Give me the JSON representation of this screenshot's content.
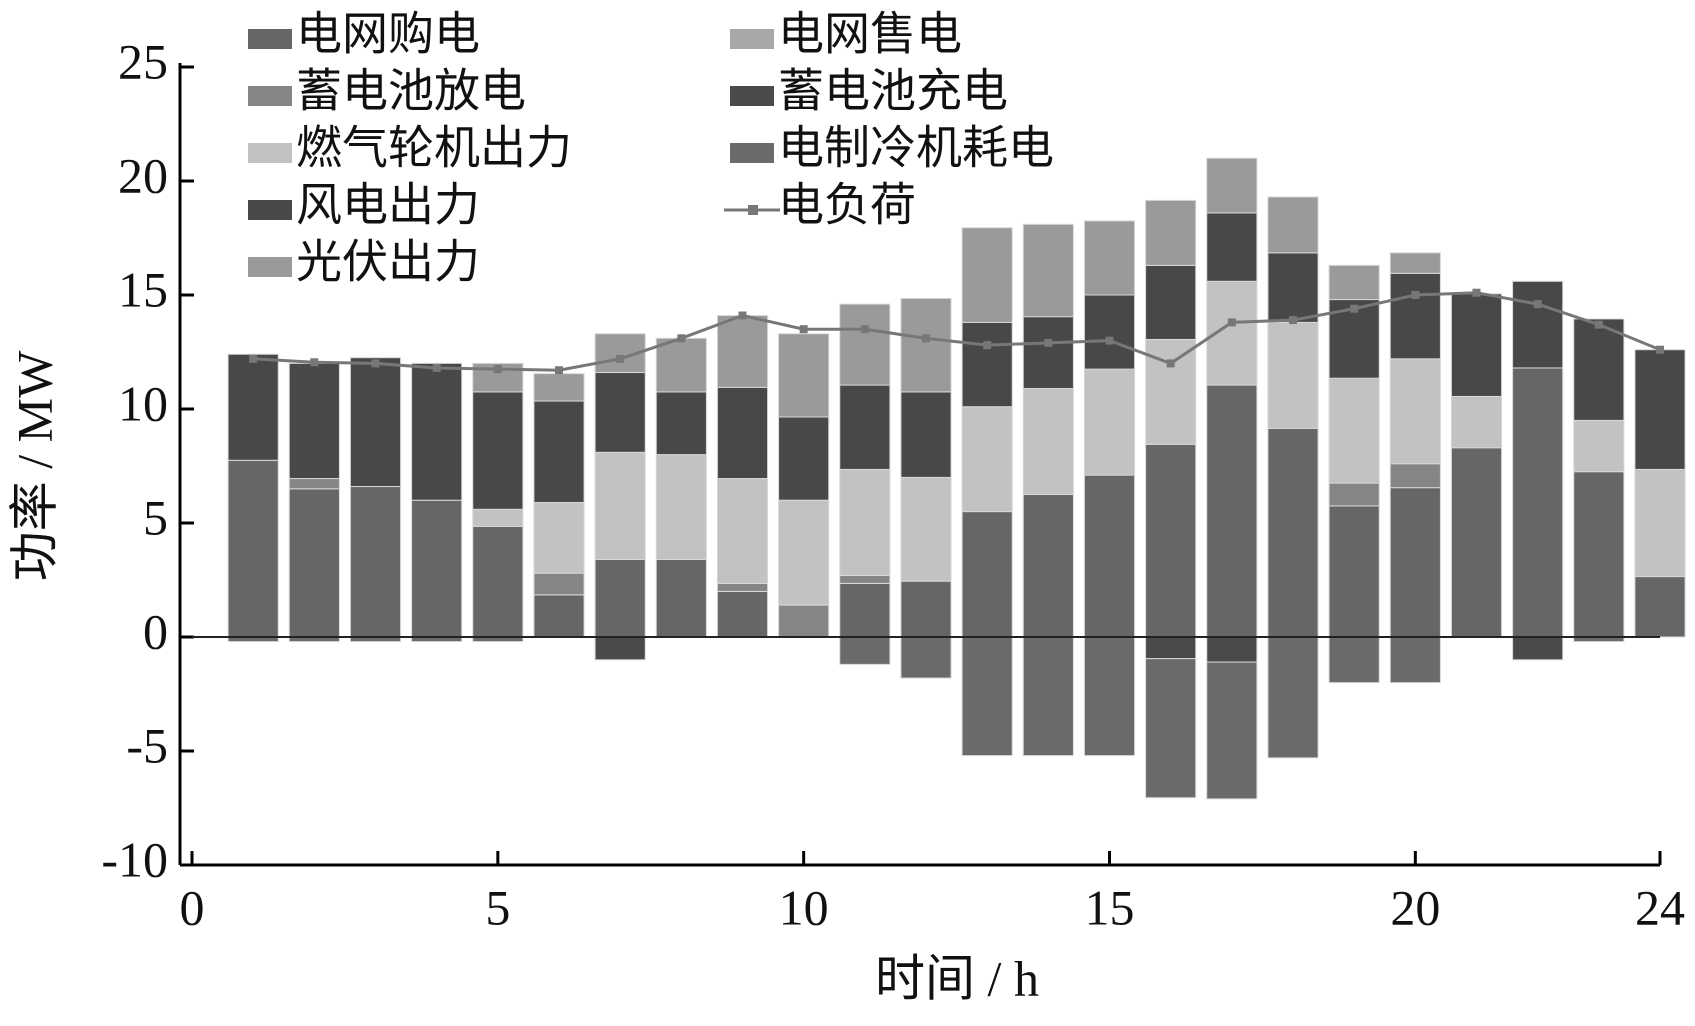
{
  "chart_data": {
    "type": "bar",
    "stacked": true,
    "xlabel": "时间 / h",
    "ylabel": "功率 / MW",
    "x": [
      1,
      2,
      3,
      4,
      5,
      6,
      7,
      8,
      9,
      10,
      11,
      12,
      13,
      14,
      15,
      16,
      17,
      18,
      19,
      20,
      21,
      22,
      23,
      24
    ],
    "xlim": [
      0,
      24
    ],
    "xticks": [
      0,
      5,
      10,
      15,
      20,
      24
    ],
    "ylim": [
      -10,
      25
    ],
    "yticks": [
      -10,
      -5,
      0,
      5,
      10,
      15,
      20,
      25
    ],
    "series": [
      {
        "name": "电网购电",
        "color": "#666666",
        "values": [
          7.75,
          6.5,
          6.6,
          6.0,
          4.85,
          1.85,
          3.4,
          3.4,
          2.0,
          0,
          2.35,
          2.45,
          5.5,
          6.25,
          7.1,
          8.45,
          11.05,
          9.15,
          5.75,
          6.55,
          8.3,
          11.8,
          7.25,
          2.65
        ]
      },
      {
        "name": "电网售电",
        "color": "#a8a8a8",
        "values": [
          0,
          0,
          0,
          0,
          0,
          0,
          0,
          0,
          0,
          0,
          0,
          0,
          0,
          0,
          0,
          0,
          0,
          0,
          0,
          0,
          0,
          0,
          0,
          0
        ]
      },
      {
        "name": "蓄电池放电",
        "color": "#858585",
        "values": [
          0,
          0.45,
          0,
          0,
          0,
          0.95,
          0,
          0,
          0.35,
          1.4,
          0.35,
          0,
          0,
          0,
          0,
          0,
          0,
          0,
          1.0,
          1.05,
          0,
          0,
          0,
          0
        ]
      },
      {
        "name": "蓄电池充电",
        "color": "#4a4a4a",
        "values": [
          0,
          0,
          0,
          0,
          0,
          0,
          -1.0,
          0,
          0,
          0,
          0,
          0,
          0,
          0,
          0,
          -0.95,
          -1.1,
          0,
          0,
          0,
          0,
          -1.0,
          0,
          0
        ]
      },
      {
        "name": "燃气轮机出力",
        "color": "#c2c2c2",
        "values": [
          0,
          0,
          0,
          0,
          0.75,
          3.1,
          4.7,
          4.6,
          4.6,
          4.6,
          4.65,
          4.55,
          4.6,
          4.65,
          4.65,
          4.6,
          4.55,
          4.65,
          4.6,
          4.6,
          2.25,
          0,
          2.25,
          4.7
        ]
      },
      {
        "name": "电制冷机耗电",
        "color": "#6a6a6a",
        "values": [
          -0.2,
          -0.2,
          -0.2,
          -0.2,
          -0.2,
          0,
          0,
          0,
          0,
          0,
          -1.2,
          -1.8,
          -5.2,
          -5.2,
          -5.2,
          -6.1,
          -6.0,
          -5.3,
          -2.0,
          -2.0,
          0,
          0,
          -0.2,
          0
        ]
      },
      {
        "name": "风电出力",
        "color": "#484848",
        "values": [
          4.65,
          5.05,
          5.65,
          6.0,
          5.15,
          4.45,
          3.5,
          2.75,
          4.0,
          3.65,
          3.7,
          3.75,
          3.7,
          3.15,
          3.25,
          3.25,
          3.0,
          3.05,
          3.45,
          3.75,
          4.5,
          3.8,
          4.45,
          5.25
        ]
      },
      {
        "name": "电负荷",
        "type": "line",
        "color": "#777777",
        "values": [
          12.2,
          12.05,
          12.0,
          11.8,
          11.75,
          11.7,
          12.2,
          13.1,
          14.1,
          13.5,
          13.5,
          13.1,
          12.8,
          12.9,
          13.0,
          12.0,
          13.8,
          13.9,
          14.4,
          15.0,
          15.1,
          14.6,
          13.7,
          12.6
        ]
      },
      {
        "name": "光伏出力",
        "color": "#9a9a9a",
        "values": [
          0,
          0,
          0,
          0,
          1.25,
          1.2,
          1.7,
          2.35,
          3.15,
          3.65,
          3.55,
          4.1,
          4.15,
          4.05,
          3.25,
          2.85,
          2.4,
          2.45,
          1.5,
          0.9,
          0,
          0,
          0,
          0
        ]
      }
    ]
  }
}
